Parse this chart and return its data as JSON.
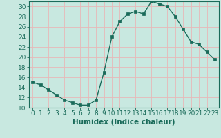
{
  "x": [
    0,
    1,
    2,
    3,
    4,
    5,
    6,
    7,
    8,
    9,
    10,
    11,
    12,
    13,
    14,
    15,
    16,
    17,
    18,
    19,
    20,
    21,
    22,
    23
  ],
  "y": [
    15,
    14.5,
    13.5,
    12.5,
    11.5,
    11,
    10.5,
    10.5,
    11.5,
    17,
    24,
    27,
    28.5,
    29,
    28.5,
    31,
    30.5,
    30,
    28,
    25.5,
    23,
    22.5,
    21,
    19.5
  ],
  "line_color": "#1a6b5a",
  "marker": "s",
  "marker_size": 2.5,
  "bg_color": "#c8e8e0",
  "grid_color": "#e8b8b8",
  "xlabel": "Humidex (Indice chaleur)",
  "xlim": [
    -0.5,
    23.5
  ],
  "ylim": [
    10,
    31
  ],
  "yticks": [
    10,
    12,
    14,
    16,
    18,
    20,
    22,
    24,
    26,
    28,
    30
  ],
  "xticks": [
    0,
    1,
    2,
    3,
    4,
    5,
    6,
    7,
    8,
    9,
    10,
    11,
    12,
    13,
    14,
    15,
    16,
    17,
    18,
    19,
    20,
    21,
    22,
    23
  ],
  "tick_color": "#1a6b5a",
  "xlabel_fontsize": 7.5,
  "tick_fontsize": 6.5,
  "line_width": 1.0
}
